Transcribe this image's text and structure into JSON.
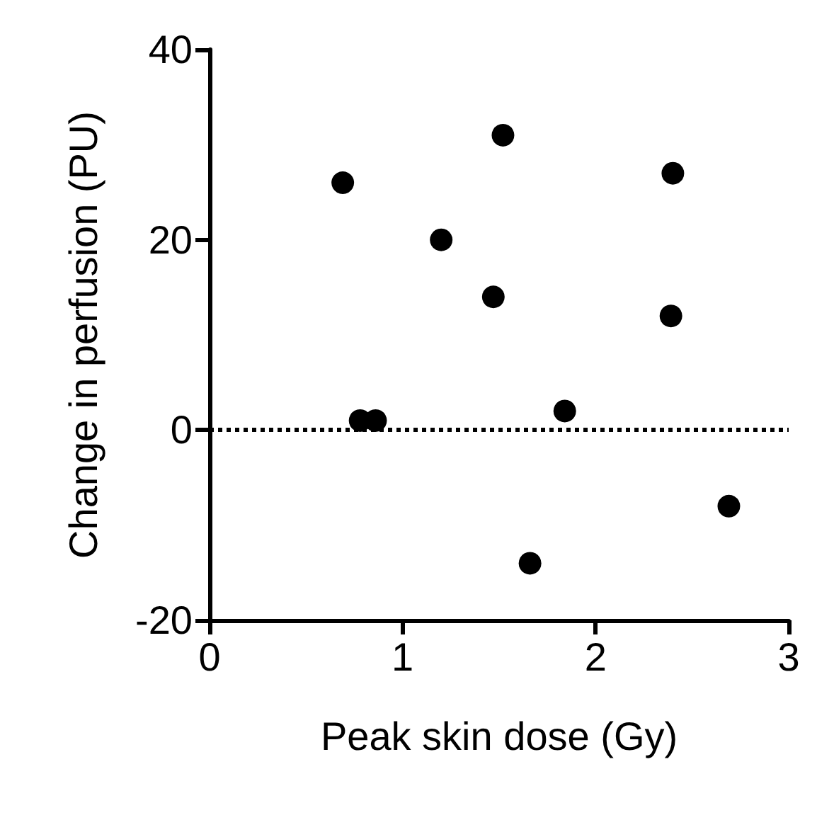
{
  "chart_data": {
    "type": "scatter",
    "xlabel": "Peak skin dose (Gy)",
    "ylabel": "Change in perfusion (PU)",
    "x": [
      0.69,
      0.78,
      0.86,
      1.2,
      1.47,
      1.52,
      1.66,
      1.84,
      2.39,
      2.4,
      2.69
    ],
    "series": [
      {
        "color": "#000000",
        "values": [
          26,
          1,
          1,
          20,
          14,
          31,
          -14,
          2,
          12,
          27,
          -8
        ]
      }
    ],
    "xlim": [
      0,
      3
    ],
    "xticks": [
      0,
      1,
      2,
      3
    ],
    "ylim": [
      -20,
      40
    ],
    "yticks": [
      -20,
      0,
      20,
      40
    ],
    "ref_lines": [
      {
        "axis": "y",
        "value": 0,
        "color": "#000000",
        "line_style": "dotted"
      }
    ],
    "grid": false,
    "marker": "circle"
  }
}
